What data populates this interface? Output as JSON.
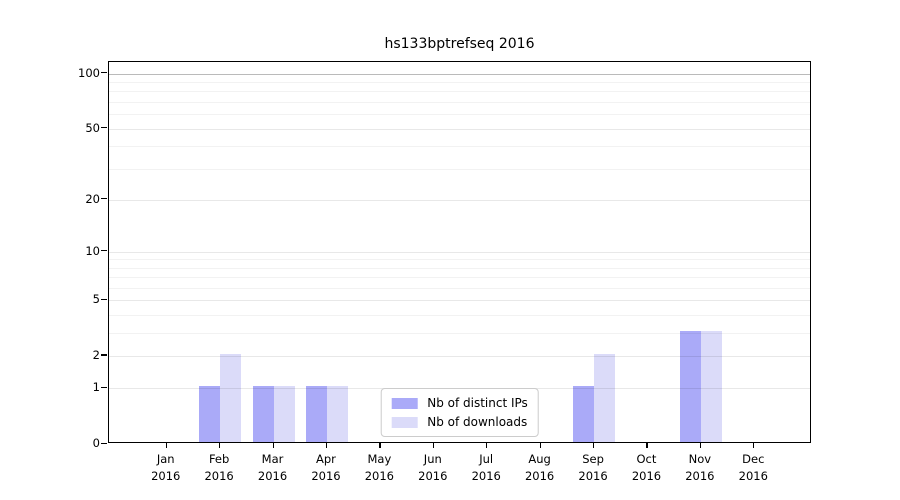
{
  "title": "hs133bptrefseq 2016",
  "chart_data": {
    "type": "bar",
    "title": "hs133bptrefseq 2016",
    "categories": [
      "Jan",
      "Feb",
      "Mar",
      "Apr",
      "May",
      "Jun",
      "Jul",
      "Aug",
      "Sep",
      "Oct",
      "Nov",
      "Dec"
    ],
    "category_year": "2016",
    "series": [
      {
        "name": "Nb of distinct IPs",
        "color": "#aaaaf8",
        "values": [
          0,
          1,
          1,
          1,
          0,
          0,
          0,
          0,
          1,
          0,
          3,
          0
        ]
      },
      {
        "name": "Nb of downloads",
        "color": "#dbdbf9",
        "values": [
          0,
          2,
          1,
          1,
          0,
          0,
          0,
          0,
          2,
          0,
          3,
          0
        ]
      }
    ],
    "y_axis": {
      "scale": "log1p",
      "ticks": [
        0,
        1,
        2,
        5,
        10,
        20,
        50,
        100
      ],
      "minor_gridlines": [
        3,
        4,
        6,
        7,
        8,
        9,
        30,
        40,
        60,
        70,
        80,
        90
      ],
      "top_value": 116,
      "ylim": [
        0,
        116
      ]
    },
    "xlabel": "",
    "ylabel": "",
    "grid": true,
    "legend_position": "bottom-center"
  }
}
